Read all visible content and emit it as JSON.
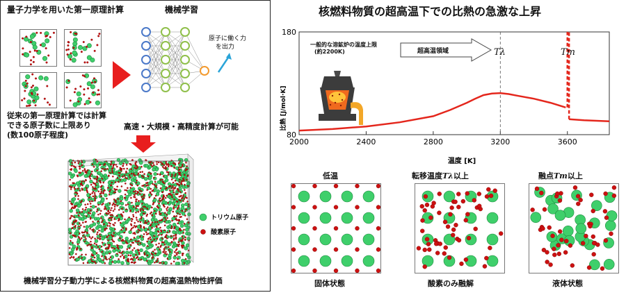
{
  "left": {
    "dft_title": "量子力学を用いた第一原理計算",
    "ml_title": "機械学習",
    "force_output": [
      "原子に働く力",
      "を出力"
    ],
    "dft_limit": [
      "従来の第一原理計算では計算",
      "できる原子数に上限あり",
      "(数100原子程度)"
    ],
    "ml_capability": "高速・大規模・高精度計算が可能",
    "legend_thorium": "トリウム原子",
    "legend_oxygen": "酸素原子",
    "caption": "機械学習分子動力学による核燃料物質の超高温熱物性評価"
  },
  "right": {
    "title": "核燃料物質の超高温下での比熱の急激な上昇",
    "furnace_note": [
      "一般的な溶鉱炉の温度上限",
      "(約2200K)"
    ],
    "ultra_high_region": "超高温領域",
    "t_lambda": "Tλ",
    "t_m": "Tm",
    "panels": [
      {
        "title": "低温",
        "caption": "固体状態"
      },
      {
        "title_pre": "転移温度",
        "title_sym": "Tλ",
        "title_post": "以上",
        "caption": "酸素のみ融解"
      },
      {
        "title_pre": "融点",
        "title_sym": "Tm",
        "title_post": "以上",
        "caption": "液体状態"
      }
    ]
  },
  "colors": {
    "curve": "#e4261c",
    "thorium": "#3fcf6b",
    "oxygen": "#cc1111",
    "arrow": "#e81e1e"
  },
  "chart_data": {
    "type": "line",
    "title": "核燃料物質の超高温下での比熱の急激な上昇",
    "xlabel": "温度 [K]",
    "ylabel": "比熱 [J/mol·K]",
    "xlim": [
      2000,
      3850
    ],
    "ylim": [
      80,
      180
    ],
    "xticks": [
      2000,
      2400,
      2800,
      3200,
      3600
    ],
    "yticks": [
      80,
      180
    ],
    "grid": false,
    "vlines": [
      3200,
      3600
    ],
    "series": [
      {
        "x": [
          2000,
          2200,
          2400,
          2600,
          2800,
          2900,
          3000,
          3050,
          3100,
          3150,
          3200,
          3250,
          3300,
          3400,
          3500,
          3590
        ],
        "y": [
          84,
          85.5,
          88,
          92,
          98,
          104,
          111,
          115,
          118.5,
          120,
          120.5,
          119.5,
          118,
          115,
          111,
          106.5
        ]
      },
      {
        "x": [
          3610,
          3700,
          3850
        ],
        "y": [
          95,
          94,
          93
        ]
      }
    ],
    "jump_x": 3600
  }
}
